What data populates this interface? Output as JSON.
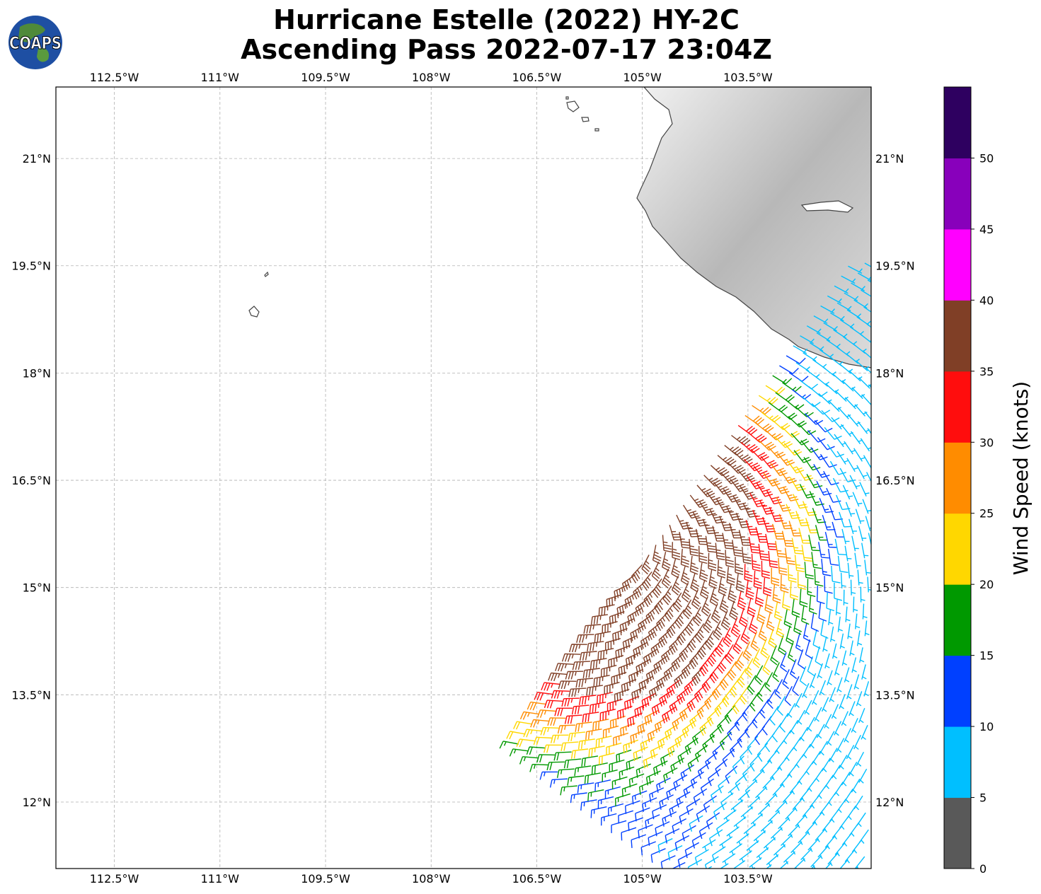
{
  "title": {
    "line1": "Hurricane Estelle (2022) HY-2C",
    "line2": "Ascending Pass 2022-07-17 23:04Z"
  },
  "logo": {
    "text": "COAPS",
    "icon": "globe-icon"
  },
  "map": {
    "lon_range": [
      -113.33,
      -101.75
    ],
    "lat_range": [
      11.07,
      22.0
    ],
    "lon_ticks": [
      "112.5°W",
      "111°W",
      "109.5°W",
      "108°W",
      "106.5°W",
      "105°W",
      "103.5°W"
    ],
    "lat_ticks": [
      "21°N",
      "19.5°N",
      "18°N",
      "16.5°N",
      "15°N",
      "13.5°N",
      "12°N"
    ],
    "grid": true,
    "gridline_style": "dashed",
    "land_shading": "grayscale terrain",
    "wind_barbs": "colored by wind speed"
  },
  "colorbar": {
    "label": "Wind Speed (knots)",
    "ticks": [
      "0",
      "5",
      "10",
      "15",
      "20",
      "25",
      "30",
      "35",
      "40",
      "45",
      "50"
    ],
    "colors": [
      "#595959",
      "#00bfff",
      "#0040ff",
      "#009900",
      "#ffd700",
      "#ff8c00",
      "#ff0d0d",
      "#803f26",
      "#ff00ff",
      "#8800bb",
      "#2e0060"
    ]
  }
}
